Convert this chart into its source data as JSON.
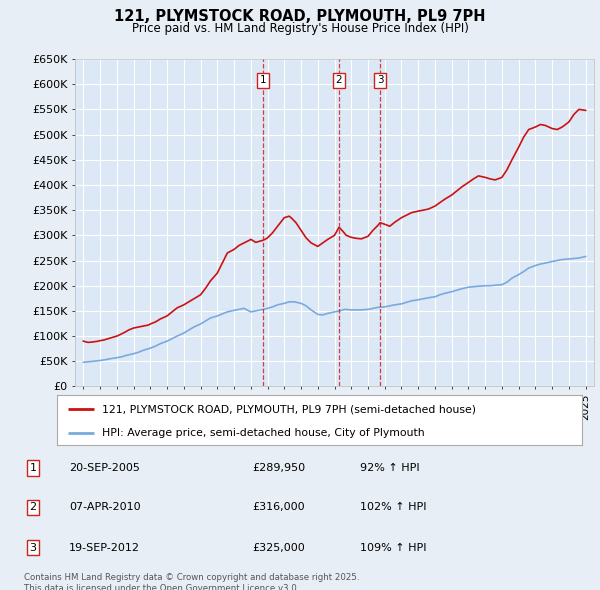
{
  "title": "121, PLYMSTOCK ROAD, PLYMOUTH, PL9 7PH",
  "subtitle": "Price paid vs. HM Land Registry's House Price Index (HPI)",
  "background_color": "#e8eef5",
  "plot_bg_color": "#dce8f5",
  "grid_color": "#ffffff",
  "legend_label_red": "121, PLYMSTOCK ROAD, PLYMOUTH, PL9 7PH (semi-detached house)",
  "legend_label_blue": "HPI: Average price, semi-detached house, City of Plymouth",
  "footer": "Contains HM Land Registry data © Crown copyright and database right 2025.\nThis data is licensed under the Open Government Licence v3.0.",
  "sales": [
    {
      "num": 1,
      "date": "20-SEP-2005",
      "price": "£289,950",
      "pct": "92% ↑ HPI",
      "year": 2005.72
    },
    {
      "num": 2,
      "date": "07-APR-2010",
      "price": "£316,000",
      "pct": "102% ↑ HPI",
      "year": 2010.27
    },
    {
      "num": 3,
      "date": "19-SEP-2012",
      "price": "£325,000",
      "pct": "109% ↑ HPI",
      "year": 2012.72
    }
  ],
  "red_line_x": [
    1995.0,
    1995.1,
    1995.2,
    1995.3,
    1995.5,
    1995.7,
    1995.9,
    1996.0,
    1996.2,
    1996.4,
    1996.6,
    1996.8,
    1997.0,
    1997.2,
    1997.5,
    1997.7,
    1998.0,
    1998.3,
    1998.6,
    1998.9,
    1999.0,
    1999.3,
    1999.6,
    2000.0,
    2000.3,
    2000.6,
    2001.0,
    2001.3,
    2001.6,
    2002.0,
    2002.3,
    2002.6,
    2003.0,
    2003.3,
    2003.6,
    2004.0,
    2004.3,
    2004.6,
    2004.9,
    2005.0,
    2005.3,
    2005.6,
    2005.72,
    2005.9,
    2006.0,
    2006.3,
    2006.6,
    2007.0,
    2007.3,
    2007.5,
    2007.7,
    2008.0,
    2008.3,
    2008.6,
    2009.0,
    2009.3,
    2009.6,
    2010.0,
    2010.27,
    2010.5,
    2010.7,
    2011.0,
    2011.3,
    2011.6,
    2012.0,
    2012.3,
    2012.6,
    2012.72,
    2013.0,
    2013.3,
    2013.6,
    2014.0,
    2014.3,
    2014.6,
    2015.0,
    2015.3,
    2015.6,
    2016.0,
    2016.3,
    2016.6,
    2017.0,
    2017.3,
    2017.6,
    2018.0,
    2018.3,
    2018.6,
    2019.0,
    2019.3,
    2019.6,
    2020.0,
    2020.3,
    2020.6,
    2021.0,
    2021.3,
    2021.6,
    2022.0,
    2022.3,
    2022.6,
    2023.0,
    2023.3,
    2023.6,
    2024.0,
    2024.3,
    2024.6,
    2025.0
  ],
  "red_line_y": [
    90000,
    89000,
    88000,
    87500,
    88000,
    89000,
    90000,
    91000,
    92000,
    94000,
    96000,
    98000,
    100000,
    103000,
    108000,
    112000,
    116000,
    118000,
    120000,
    122000,
    124000,
    128000,
    134000,
    140000,
    148000,
    156000,
    162000,
    168000,
    174000,
    182000,
    195000,
    210000,
    225000,
    245000,
    265000,
    272000,
    280000,
    285000,
    290000,
    292000,
    286000,
    289000,
    289950,
    293000,
    295000,
    305000,
    318000,
    335000,
    338000,
    332000,
    325000,
    310000,
    295000,
    285000,
    278000,
    285000,
    292000,
    300000,
    316000,
    308000,
    300000,
    296000,
    294000,
    293000,
    298000,
    310000,
    320000,
    325000,
    322000,
    318000,
    326000,
    335000,
    340000,
    345000,
    348000,
    350000,
    352000,
    358000,
    365000,
    372000,
    380000,
    388000,
    396000,
    405000,
    412000,
    418000,
    415000,
    412000,
    410000,
    415000,
    430000,
    450000,
    475000,
    495000,
    510000,
    515000,
    520000,
    518000,
    512000,
    510000,
    515000,
    525000,
    540000,
    550000,
    548000
  ],
  "blue_line_x": [
    1995.0,
    1995.3,
    1995.6,
    1996.0,
    1996.3,
    1996.6,
    1997.0,
    1997.3,
    1997.6,
    1998.0,
    1998.3,
    1998.6,
    1999.0,
    1999.3,
    1999.6,
    2000.0,
    2000.3,
    2000.6,
    2001.0,
    2001.3,
    2001.6,
    2002.0,
    2002.3,
    2002.6,
    2003.0,
    2003.3,
    2003.6,
    2004.0,
    2004.3,
    2004.6,
    2005.0,
    2005.3,
    2005.6,
    2006.0,
    2006.3,
    2006.6,
    2007.0,
    2007.3,
    2007.6,
    2008.0,
    2008.3,
    2008.6,
    2009.0,
    2009.3,
    2009.6,
    2010.0,
    2010.3,
    2010.6,
    2011.0,
    2011.3,
    2011.6,
    2012.0,
    2012.3,
    2012.6,
    2013.0,
    2013.3,
    2013.6,
    2014.0,
    2014.3,
    2014.6,
    2015.0,
    2015.3,
    2015.6,
    2016.0,
    2016.3,
    2016.6,
    2017.0,
    2017.3,
    2017.6,
    2018.0,
    2018.3,
    2018.6,
    2019.0,
    2019.3,
    2019.6,
    2020.0,
    2020.3,
    2020.6,
    2021.0,
    2021.3,
    2021.6,
    2022.0,
    2022.3,
    2022.6,
    2023.0,
    2023.3,
    2023.6,
    2024.0,
    2024.3,
    2024.6,
    2025.0
  ],
  "blue_line_y": [
    48000,
    49000,
    50000,
    51500,
    53000,
    55000,
    57000,
    59000,
    62000,
    65000,
    68000,
    72000,
    76000,
    80000,
    85000,
    90000,
    95000,
    100000,
    106000,
    112000,
    118000,
    124000,
    130000,
    136000,
    140000,
    144000,
    148000,
    151000,
    153000,
    155000,
    148000,
    150000,
    152000,
    155000,
    158000,
    162000,
    165000,
    168000,
    168000,
    165000,
    160000,
    152000,
    143000,
    142000,
    145000,
    148000,
    150000,
    153000,
    152000,
    152000,
    152000,
    153000,
    155000,
    157000,
    158000,
    160000,
    162000,
    164000,
    167000,
    170000,
    172000,
    174000,
    176000,
    178000,
    182000,
    185000,
    188000,
    191000,
    194000,
    197000,
    198000,
    199000,
    200000,
    200000,
    201000,
    202000,
    207000,
    215000,
    222000,
    228000,
    235000,
    240000,
    243000,
    245000,
    248000,
    250000,
    252000,
    253000,
    254000,
    255000,
    258000
  ],
  "ylim": [
    0,
    650000
  ],
  "xlim": [
    1994.5,
    2025.5
  ],
  "yticks": [
    0,
    50000,
    100000,
    150000,
    200000,
    250000,
    300000,
    350000,
    400000,
    450000,
    500000,
    550000,
    600000,
    650000
  ],
  "xticks": [
    1995,
    1996,
    1997,
    1998,
    1999,
    2000,
    2001,
    2002,
    2003,
    2004,
    2005,
    2006,
    2007,
    2008,
    2009,
    2010,
    2011,
    2012,
    2013,
    2014,
    2015,
    2016,
    2017,
    2018,
    2019,
    2020,
    2021,
    2022,
    2023,
    2024,
    2025
  ]
}
